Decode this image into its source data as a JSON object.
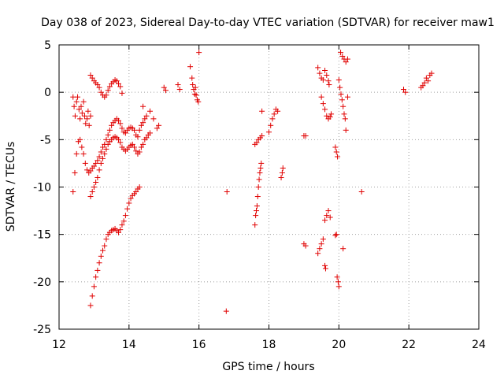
{
  "chart_data": {
    "type": "scatter",
    "title": "Day 038 of 2023, Sidereal Day-to-day VTEC variation (SDTVAR) for receiver maw1",
    "xlabel": "GPS time / hours",
    "ylabel": "SDTVAR / TECUs",
    "xlim": [
      12,
      24
    ],
    "ylim": [
      -25,
      5
    ],
    "xticks": [
      12,
      14,
      16,
      18,
      20,
      22,
      24
    ],
    "xtick_labels": [
      "12",
      "14",
      "16",
      "18",
      "20",
      "22",
      "24"
    ],
    "yticks": [
      5,
      0,
      -5,
      -10,
      -15,
      -20,
      -25
    ],
    "ytick_labels": [
      "5",
      "0",
      "-5",
      "-10",
      "-15",
      "-20",
      "-25"
    ],
    "grid": true,
    "marker": "+",
    "marker_color": "#e00000",
    "series": [
      {
        "name": "maw1",
        "segments": [
          [
            [
              12.4,
              -10.5
            ],
            [
              12.45,
              -8.5
            ],
            [
              12.5,
              -6.5
            ],
            [
              12.55,
              -5.2
            ],
            [
              12.6,
              -5.0
            ],
            [
              12.65,
              -5.8
            ],
            [
              12.7,
              -6.5
            ],
            [
              12.75,
              -7.5
            ],
            [
              12.8,
              -8.2
            ],
            [
              12.85,
              -8.5
            ],
            [
              12.9,
              -8.3
            ],
            [
              12.95,
              -8.0
            ],
            [
              13.0,
              -7.8
            ],
            [
              13.05,
              -7.5
            ],
            [
              13.1,
              -7.2
            ],
            [
              13.15,
              -6.8
            ],
            [
              13.2,
              -6.3
            ],
            [
              13.25,
              -5.8
            ],
            [
              13.3,
              -5.5
            ],
            [
              13.35,
              -5.0
            ],
            [
              13.4,
              -4.5
            ],
            [
              13.45,
              -4.0
            ],
            [
              13.5,
              -3.5
            ],
            [
              13.55,
              -3.2
            ],
            [
              13.6,
              -3.0
            ],
            [
              13.65,
              -2.8
            ],
            [
              13.7,
              -3.0
            ],
            [
              13.75,
              -3.3
            ],
            [
              13.8,
              -3.8
            ],
            [
              13.85,
              -4.2
            ],
            [
              13.9,
              -4.3
            ],
            [
              13.95,
              -4.0
            ],
            [
              14.0,
              -3.8
            ],
            [
              14.05,
              -3.7
            ],
            [
              14.1,
              -3.8
            ],
            [
              14.15,
              -4.0
            ],
            [
              14.2,
              -4.5
            ],
            [
              14.25,
              -4.7
            ],
            [
              14.3,
              -4.0
            ],
            [
              14.35,
              -3.5
            ],
            [
              14.4,
              -3.2
            ],
            [
              14.45,
              -2.8
            ]
          ],
          [
            [
              12.4,
              -0.5
            ],
            [
              12.43,
              -1.5
            ],
            [
              12.46,
              -2.5
            ],
            [
              12.5,
              -1.0
            ],
            [
              12.53,
              -0.5
            ],
            [
              12.57,
              -1.8
            ],
            [
              12.6,
              -2.8
            ],
            [
              12.63,
              -1.5
            ],
            [
              12.66,
              -2.2
            ],
            [
              12.7,
              -1.0
            ],
            [
              12.73,
              -2.5
            ],
            [
              12.76,
              -3.3
            ],
            [
              12.8,
              -2.8
            ],
            [
              12.83,
              -2.0
            ],
            [
              12.86,
              -3.5
            ],
            [
              12.9,
              -2.5
            ]
          ],
          [
            [
              12.9,
              1.8
            ],
            [
              12.95,
              1.5
            ],
            [
              13.0,
              1.2
            ],
            [
              13.05,
              1.0
            ],
            [
              13.1,
              0.8
            ],
            [
              13.15,
              0.5
            ],
            [
              13.2,
              0.0
            ],
            [
              13.25,
              -0.3
            ],
            [
              13.3,
              -0.5
            ],
            [
              13.35,
              -0.3
            ],
            [
              13.4,
              0.2
            ],
            [
              13.45,
              0.6
            ],
            [
              13.5,
              0.9
            ],
            [
              13.55,
              1.1
            ],
            [
              13.6,
              1.3
            ],
            [
              13.65,
              1.2
            ],
            [
              13.7,
              0.9
            ],
            [
              13.75,
              0.6
            ],
            [
              13.8,
              -0.1
            ]
          ],
          [
            [
              12.9,
              -11.0
            ],
            [
              12.95,
              -10.5
            ],
            [
              13.0,
              -10.0
            ],
            [
              13.05,
              -9.5
            ],
            [
              13.1,
              -9.0
            ],
            [
              13.15,
              -8.2
            ],
            [
              13.2,
              -7.5
            ],
            [
              13.25,
              -7.0
            ],
            [
              13.3,
              -6.5
            ],
            [
              13.35,
              -6.0
            ],
            [
              13.4,
              -5.5
            ],
            [
              13.45,
              -5.2
            ],
            [
              13.5,
              -5.0
            ],
            [
              13.55,
              -4.8
            ],
            [
              13.6,
              -4.7
            ],
            [
              13.65,
              -4.8
            ],
            [
              13.7,
              -5.0
            ],
            [
              13.75,
              -5.3
            ],
            [
              13.8,
              -5.8
            ],
            [
              13.85,
              -6.0
            ],
            [
              13.9,
              -6.2
            ],
            [
              13.95,
              -6.0
            ],
            [
              14.0,
              -5.8
            ],
            [
              14.05,
              -5.6
            ],
            [
              14.1,
              -5.5
            ],
            [
              14.15,
              -5.8
            ],
            [
              14.2,
              -6.2
            ],
            [
              14.25,
              -6.5
            ],
            [
              14.3,
              -6.3
            ],
            [
              14.35,
              -5.8
            ],
            [
              14.4,
              -5.5
            ],
            [
              14.45,
              -5.0
            ],
            [
              14.5,
              -4.8
            ],
            [
              14.55,
              -4.5
            ],
            [
              14.6,
              -4.3
            ]
          ],
          [
            [
              12.9,
              -22.5
            ],
            [
              12.95,
              -21.5
            ],
            [
              13.0,
              -20.5
            ],
            [
              13.05,
              -19.5
            ],
            [
              13.1,
              -18.8
            ],
            [
              13.15,
              -18.0
            ],
            [
              13.2,
              -17.3
            ],
            [
              13.25,
              -16.7
            ],
            [
              13.3,
              -16.2
            ],
            [
              13.35,
              -15.5
            ],
            [
              13.4,
              -15.0
            ],
            [
              13.45,
              -14.8
            ],
            [
              13.5,
              -14.6
            ],
            [
              13.55,
              -14.5
            ],
            [
              13.6,
              -14.4
            ],
            [
              13.65,
              -14.6
            ],
            [
              13.7,
              -14.8
            ],
            [
              13.75,
              -14.5
            ],
            [
              13.8,
              -14.0
            ],
            [
              13.85,
              -13.6
            ],
            [
              13.9,
              -13.0
            ],
            [
              13.95,
              -12.3
            ],
            [
              14.0,
              -11.7
            ],
            [
              14.05,
              -11.2
            ],
            [
              14.1,
              -10.9
            ],
            [
              14.15,
              -10.7
            ],
            [
              14.2,
              -10.5
            ],
            [
              14.25,
              -10.2
            ],
            [
              14.3,
              -10.0
            ]
          ],
          [
            [
              14.4,
              -1.5
            ],
            [
              14.5,
              -2.5
            ],
            [
              14.6,
              -2.0
            ],
            [
              14.7,
              -2.8
            ],
            [
              14.8,
              -3.8
            ],
            [
              14.85,
              -3.5
            ]
          ],
          [
            [
              15.0,
              0.5
            ],
            [
              15.05,
              0.2
            ]
          ],
          [
            [
              15.4,
              0.8
            ],
            [
              15.45,
              0.3
            ]
          ],
          [
            [
              15.75,
              2.7
            ],
            [
              15.8,
              1.5
            ],
            [
              15.82,
              0.8
            ],
            [
              15.85,
              0.3
            ],
            [
              15.88,
              -0.2
            ],
            [
              15.9,
              0.5
            ],
            [
              15.92,
              -0.3
            ],
            [
              15.95,
              -0.8
            ],
            [
              15.98,
              -1.0
            ]
          ],
          [
            [
              16.0,
              4.2
            ]
          ],
          [
            [
              16.8,
              -10.5
            ]
          ],
          [
            [
              16.78,
              -23.1
            ]
          ],
          [
            [
              17.6,
              -14.0
            ],
            [
              17.62,
              -13.0
            ],
            [
              17.64,
              -12.5
            ],
            [
              17.66,
              -12.0
            ],
            [
              17.68,
              -11.0
            ],
            [
              17.7,
              -10.0
            ],
            [
              17.72,
              -9.2
            ],
            [
              17.74,
              -8.5
            ],
            [
              17.76,
              -8.0
            ],
            [
              17.78,
              -7.5
            ]
          ],
          [
            [
              17.6,
              -5.5
            ],
            [
              17.65,
              -5.3
            ],
            [
              17.7,
              -5.0
            ],
            [
              17.75,
              -4.8
            ],
            [
              17.8,
              -4.6
            ]
          ],
          [
            [
              17.8,
              -2.0
            ]
          ],
          [
            [
              18.0,
              -4.2
            ],
            [
              18.05,
              -3.5
            ],
            [
              18.1,
              -2.8
            ],
            [
              18.15,
              -2.3
            ],
            [
              18.2,
              -1.8
            ],
            [
              18.25,
              -2.0
            ]
          ],
          [
            [
              18.35,
              -9.0
            ],
            [
              18.38,
              -8.5
            ],
            [
              18.4,
              -8.0
            ]
          ],
          [
            [
              19.0,
              -4.6
            ],
            [
              19.05,
              -4.6
            ]
          ],
          [
            [
              19.0,
              -16.0
            ],
            [
              19.05,
              -16.2
            ]
          ],
          [
            [
              19.4,
              -17.0
            ],
            [
              19.45,
              -16.5
            ],
            [
              19.5,
              -16.0
            ],
            [
              19.55,
              -15.5
            ]
          ],
          [
            [
              19.6,
              -18.3
            ],
            [
              19.62,
              -18.6
            ]
          ],
          [
            [
              19.4,
              2.6
            ],
            [
              19.45,
              2.0
            ],
            [
              19.5,
              1.5
            ],
            [
              19.55,
              1.3
            ],
            [
              19.6,
              2.3
            ],
            [
              19.65,
              1.8
            ],
            [
              19.7,
              1.2
            ],
            [
              19.72,
              0.8
            ]
          ],
          [
            [
              19.5,
              -0.5
            ],
            [
              19.55,
              -1.2
            ],
            [
              19.6,
              -1.8
            ],
            [
              19.65,
              -2.5
            ],
            [
              19.7,
              -2.8
            ],
            [
              19.75,
              -2.6
            ],
            [
              19.78,
              -2.3
            ]
          ],
          [
            [
              19.6,
              -13.5
            ],
            [
              19.65,
              -13.0
            ],
            [
              19.7,
              -12.5
            ],
            [
              19.75,
              -13.2
            ]
          ],
          [
            [
              19.9,
              -5.8
            ],
            [
              19.93,
              -6.3
            ],
            [
              19.96,
              -6.8
            ]
          ],
          [
            [
              19.9,
              -15.1
            ],
            [
              19.93,
              -15.0
            ]
          ],
          [
            [
              19.95,
              -19.5
            ],
            [
              19.98,
              -20.0
            ],
            [
              20.0,
              -20.5
            ]
          ],
          [
            [
              20.0,
              1.3
            ],
            [
              20.03,
              0.5
            ],
            [
              20.06,
              -0.2
            ],
            [
              20.09,
              -0.8
            ],
            [
              20.12,
              -1.5
            ],
            [
              20.15,
              -2.3
            ],
            [
              20.18,
              -2.8
            ]
          ],
          [
            [
              20.05,
              4.2
            ],
            [
              20.1,
              3.8
            ],
            [
              20.15,
              3.5
            ],
            [
              20.2,
              3.2
            ],
            [
              20.25,
              3.5
            ]
          ],
          [
            [
              20.2,
              -4.0
            ]
          ],
          [
            [
              20.25,
              -0.5
            ]
          ],
          [
            [
              20.12,
              -16.5
            ]
          ],
          [
            [
              20.65,
              -10.5
            ]
          ],
          [
            [
              21.85,
              0.3
            ],
            [
              21.9,
              0.0
            ]
          ],
          [
            [
              22.35,
              0.5
            ],
            [
              22.4,
              0.7
            ],
            [
              22.45,
              1.0
            ],
            [
              22.5,
              1.5
            ],
            [
              22.55,
              1.2
            ],
            [
              22.6,
              1.8
            ],
            [
              22.65,
              2.0
            ]
          ]
        ]
      }
    ]
  }
}
